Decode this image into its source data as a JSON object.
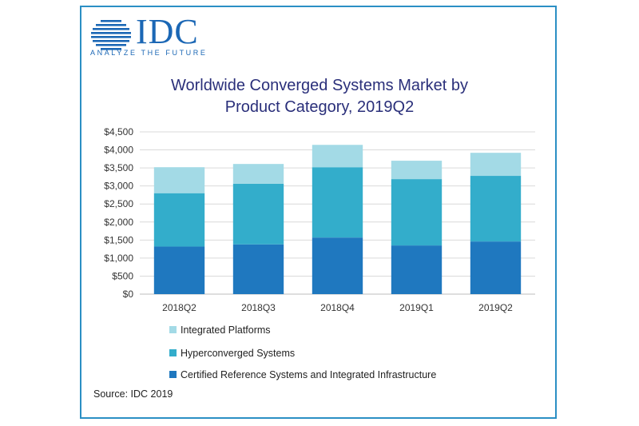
{
  "logo": {
    "name": "IDC",
    "tagline": "ANALYZE THE FUTURE",
    "color": "#1b67b5"
  },
  "chart_data": {
    "type": "bar",
    "stacked": true,
    "title": "Worldwide Converged Systems Market by Product Category, 2019Q2",
    "title_lines": [
      "Worldwide Converged Systems Market by",
      "Product Category, 2019Q2"
    ],
    "xlabel": "",
    "ylabel": "",
    "categories": [
      "2018Q2",
      "2018Q3",
      "2018Q4",
      "2019Q1",
      "2019Q2"
    ],
    "series": [
      {
        "name": "Certified Reference Systems and Integrated Infrastructure",
        "values": [
          1320,
          1380,
          1570,
          1350,
          1460
        ],
        "color": "#1f78bf"
      },
      {
        "name": "Hyperconverged Systems",
        "values": [
          1480,
          1680,
          1950,
          1840,
          1820
        ],
        "color": "#33adcb"
      },
      {
        "name": "Integrated Platforms",
        "values": [
          720,
          550,
          620,
          510,
          640
        ],
        "color": "#a3dae6"
      }
    ],
    "ylim": [
      0,
      4500
    ],
    "yticks": [
      0,
      500,
      1000,
      1500,
      2000,
      2500,
      3000,
      3500,
      4000,
      4500
    ],
    "ytick_labels": [
      "$0",
      "$500",
      "$1,000",
      "$1,500",
      "$2,000",
      "$2,500",
      "$3,000",
      "$3,500",
      "$4,000",
      "$4,500"
    ],
    "grid": true,
    "legend_position": "bottom-left",
    "legend_order": [
      "Integrated Platforms",
      "Hyperconverged Systems",
      "Certified Reference Systems and Integrated Infrastructure"
    ]
  },
  "source": "Source: IDC 2019"
}
